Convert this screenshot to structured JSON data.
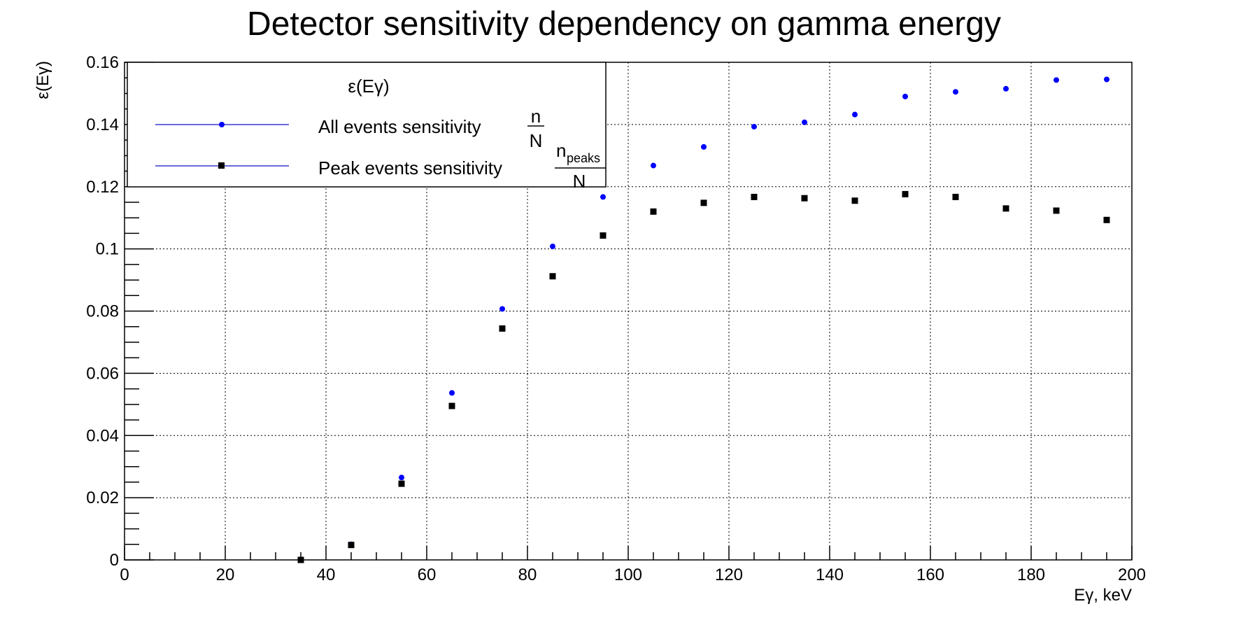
{
  "chart_data": {
    "type": "scatter",
    "title": "Detector sensitivity dependency on gamma energy",
    "xlabel": "Eγ, keV",
    "ylabel": "ε(Eγ)",
    "xlim": [
      0,
      200
    ],
    "ylim": [
      0,
      0.16
    ],
    "x_ticks": [
      "0",
      "20",
      "40",
      "60",
      "80",
      "100",
      "120",
      "140",
      "160",
      "180",
      "200"
    ],
    "y_ticks": [
      "0",
      "0.02",
      "0.04",
      "0.06",
      "0.08",
      "0.1",
      "0.12",
      "0.14",
      "0.16"
    ],
    "grid": true,
    "legend": {
      "header": "ε(Eγ)",
      "placement": "top-left",
      "entries": [
        {
          "label": "All events sensitivity",
          "fraction_num": "n",
          "fraction_num_sub": "",
          "fraction_den": "N"
        },
        {
          "label": "Peak events sensitivity",
          "fraction_num": "n",
          "fraction_num_sub": "peaks",
          "fraction_den": "N"
        }
      ]
    },
    "series": [
      {
        "marker": "circle",
        "color": "#0000ff",
        "points": [
          [
            35,
            0.0
          ],
          [
            45,
            0.005
          ],
          [
            55,
            0.0265
          ],
          [
            65,
            0.0537
          ],
          [
            75,
            0.0807
          ],
          [
            85,
            0.1008
          ],
          [
            95,
            0.1167
          ],
          [
            105,
            0.1268
          ],
          [
            115,
            0.1328
          ],
          [
            125,
            0.1393
          ],
          [
            135,
            0.1407
          ],
          [
            145,
            0.1432
          ],
          [
            155,
            0.149
          ],
          [
            165,
            0.1505
          ],
          [
            175,
            0.1515
          ],
          [
            185,
            0.1543
          ],
          [
            195,
            0.1545
          ]
        ]
      },
      {
        "marker": "square",
        "color": "#000000",
        "points": [
          [
            35,
            0.0
          ],
          [
            45,
            0.0048
          ],
          [
            55,
            0.0245
          ],
          [
            65,
            0.0495
          ],
          [
            75,
            0.0744
          ],
          [
            85,
            0.0912
          ],
          [
            95,
            0.1043
          ],
          [
            105,
            0.112
          ],
          [
            115,
            0.1148
          ],
          [
            125,
            0.1167
          ],
          [
            135,
            0.1163
          ],
          [
            145,
            0.1155
          ],
          [
            155,
            0.1176
          ],
          [
            165,
            0.1167
          ],
          [
            175,
            0.113
          ],
          [
            185,
            0.1123
          ],
          [
            195,
            0.1093
          ]
        ]
      }
    ]
  }
}
